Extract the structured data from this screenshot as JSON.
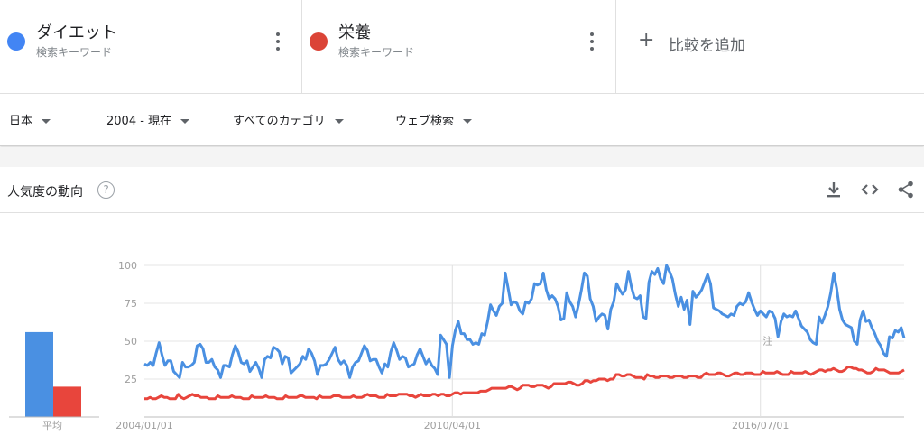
{
  "terms": [
    {
      "name": "ダイエット",
      "type": "検索キーワード",
      "color": "#4285f4"
    },
    {
      "name": "栄養",
      "type": "検索キーワード",
      "color": "#db4437"
    }
  ],
  "compare": {
    "plus": "+",
    "label": "比較を追加"
  },
  "filters": {
    "region": "日本",
    "time": "2004 - 現在",
    "category": "すべてのカテゴリ",
    "search_type": "ウェブ検索"
  },
  "card": {
    "title": "人気度の動向",
    "help": "?"
  },
  "icons": {
    "download": "download-icon",
    "embed": "embed-icon",
    "share": "share-icon",
    "menu": "more-vert-icon"
  },
  "chart_data": {
    "type": "line",
    "x_start": "2004/01/01",
    "x_end": "2019/06/01",
    "xtick_labels": [
      "2004/01/01",
      "2010/04/01",
      "2016/07/01"
    ],
    "ylim": [
      0,
      100
    ],
    "yticks": [
      25,
      50,
      75,
      100
    ],
    "note_label": "注",
    "averages": {
      "label": "平均",
      "values": [
        56,
        20
      ]
    },
    "series": [
      {
        "name": "ダイエット",
        "color": "#4a90e2",
        "values": [
          35,
          34,
          36,
          34,
          42,
          49,
          41,
          34,
          37,
          37,
          30,
          28,
          26,
          36,
          33,
          33,
          34,
          36,
          47,
          48,
          45,
          36,
          36,
          38,
          33,
          31,
          26,
          34,
          34,
          33,
          41,
          47,
          43,
          36,
          35,
          37,
          30,
          33,
          36,
          32,
          26,
          38,
          40,
          39,
          46,
          45,
          43,
          35,
          40,
          39,
          29,
          31,
          33,
          35,
          40,
          38,
          45,
          42,
          37,
          28,
          34,
          34,
          35,
          38,
          42,
          46,
          38,
          35,
          37,
          34,
          26,
          33,
          36,
          37,
          42,
          47,
          44,
          37,
          38,
          38,
          33,
          29,
          35,
          33,
          43,
          49,
          44,
          38,
          40,
          39,
          33,
          34,
          35,
          41,
          45,
          40,
          35,
          38,
          34,
          32,
          28,
          54,
          51,
          48,
          26,
          47,
          57,
          63,
          55,
          55,
          51,
          51,
          48,
          49,
          48,
          55,
          54,
          63,
          74,
          70,
          67,
          73,
          75,
          95,
          85,
          74,
          76,
          75,
          70,
          68,
          76,
          75,
          78,
          88,
          87,
          88,
          95,
          84,
          78,
          80,
          78,
          73,
          64,
          65,
          82,
          76,
          73,
          66,
          74,
          84,
          95,
          93,
          78,
          73,
          63,
          66,
          68,
          67,
          58,
          71,
          76,
          88,
          84,
          81,
          84,
          96,
          86,
          79,
          78,
          80,
          66,
          65,
          89,
          96,
          94,
          98,
          91,
          88,
          100,
          96,
          91,
          81,
          73,
          79,
          71,
          77,
          61,
          83,
          79,
          81,
          84,
          89,
          94,
          88,
          72,
          71,
          70,
          68,
          67,
          66,
          68,
          67,
          73,
          75,
          74,
          76,
          82,
          76,
          71,
          67,
          70,
          68,
          66,
          70,
          69,
          65,
          53,
          63,
          68,
          66,
          67,
          66,
          70,
          65,
          60,
          58,
          56,
          51,
          49,
          48,
          66,
          62,
          67,
          73,
          82,
          95,
          85,
          71,
          64,
          61,
          60,
          59,
          50,
          48,
          64,
          70,
          63,
          64,
          59,
          55,
          50,
          47,
          42,
          40,
          53,
          52,
          57,
          56,
          59,
          52
        ]
      },
      {
        "name": "栄養",
        "color": "#e8453c",
        "values": [
          12,
          12,
          13,
          12,
          12,
          13,
          14,
          13,
          13,
          12,
          12,
          12,
          15,
          13,
          12,
          13,
          14,
          15,
          14,
          14,
          13,
          13,
          13,
          12,
          12,
          12,
          14,
          13,
          13,
          13,
          13,
          14,
          13,
          13,
          13,
          12,
          12,
          12,
          14,
          13,
          13,
          13,
          13,
          14,
          13,
          13,
          13,
          12,
          12,
          12,
          14,
          13,
          13,
          13,
          13,
          14,
          14,
          13,
          13,
          13,
          13,
          12,
          14,
          13,
          13,
          13,
          13,
          14,
          14,
          14,
          13,
          13,
          13,
          13,
          14,
          13,
          13,
          13,
          14,
          15,
          14,
          14,
          14,
          13,
          13,
          13,
          15,
          14,
          14,
          14,
          15,
          15,
          15,
          15,
          14,
          14,
          13,
          14,
          15,
          14,
          14,
          14,
          15,
          15,
          14,
          15,
          15,
          14,
          14,
          15,
          16,
          16,
          15,
          16,
          16,
          16,
          16,
          16,
          16,
          17,
          17,
          17,
          18,
          19,
          19,
          19,
          19,
          19,
          19,
          20,
          20,
          19,
          18,
          19,
          21,
          21,
          21,
          20,
          20,
          21,
          21,
          21,
          20,
          19,
          20,
          22,
          22,
          22,
          22,
          22,
          23,
          23,
          22,
          21,
          21,
          22,
          24,
          24,
          23,
          24,
          24,
          25,
          25,
          25,
          24,
          25,
          25,
          28,
          28,
          27,
          27,
          28,
          28,
          27,
          26,
          26,
          26,
          25,
          28,
          27,
          27,
          26,
          26,
          27,
          27,
          27,
          26,
          26,
          27,
          27,
          27,
          26,
          26,
          27,
          27,
          27,
          26,
          26,
          28,
          29,
          28,
          28,
          28,
          29,
          29,
          28,
          27,
          27,
          28,
          29,
          29,
          28,
          28,
          29,
          29,
          29,
          28,
          28,
          28,
          30,
          29,
          29,
          29,
          29,
          30,
          29,
          28,
          28,
          28,
          30,
          29,
          29,
          29,
          29,
          30,
          29,
          28,
          29,
          30,
          31,
          31,
          30,
          31,
          31,
          32,
          31,
          30,
          30,
          31,
          33,
          33,
          32,
          32,
          31,
          31,
          30,
          29,
          29,
          30,
          32,
          31,
          31,
          31,
          30,
          29,
          29,
          29,
          29,
          30,
          31
        ]
      }
    ]
  }
}
